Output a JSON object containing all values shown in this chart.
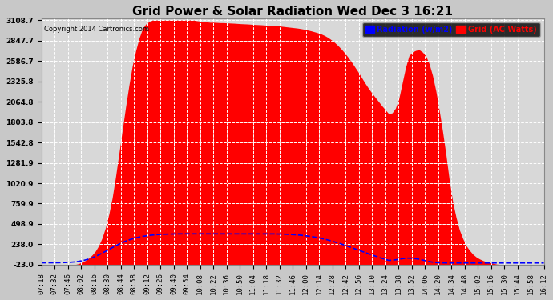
{
  "title": "Grid Power & Solar Radiation Wed Dec 3 16:21",
  "copyright": "Copyright 2014 Cartronics.com",
  "legend_labels": [
    "Radiation (w/m2)",
    "Grid (AC Watts)"
  ],
  "yticks": [
    3108.7,
    2847.7,
    2586.7,
    2325.8,
    2064.8,
    1803.8,
    1542.8,
    1281.9,
    1020.9,
    759.9,
    498.9,
    238.0,
    -23.0
  ],
  "ymin": -23.0,
  "ymax": 3108.7,
  "fig_bg": "#c8c8c8",
  "plot_bg": "#d8d8d8",
  "title_fontsize": 11,
  "tick_fontsize": 6.5,
  "x_display_times": [
    "07:18",
    "07:32",
    "07:46",
    "08:02",
    "08:16",
    "08:30",
    "08:44",
    "08:58",
    "09:12",
    "09:26",
    "09:40",
    "09:54",
    "10:08",
    "10:22",
    "10:36",
    "10:50",
    "11:04",
    "11:18",
    "11:32",
    "11:46",
    "12:00",
    "12:14",
    "12:28",
    "12:42",
    "12:56",
    "13:10",
    "13:24",
    "13:38",
    "13:52",
    "14:06",
    "14:20",
    "14:34",
    "14:48",
    "15:02",
    "15:16",
    "15:30",
    "15:44",
    "15:58",
    "16:12"
  ],
  "grid_ac_data": [
    -23,
    -23,
    -23,
    -23,
    -23,
    -23,
    -23,
    -23,
    -23,
    -23,
    -20,
    -10,
    10,
    30,
    60,
    100,
    150,
    220,
    320,
    450,
    620,
    830,
    1100,
    1400,
    1700,
    2000,
    2280,
    2530,
    2720,
    2880,
    3000,
    3060,
    3090,
    3108,
    3108,
    3108,
    3108,
    3108,
    3108,
    3108,
    3108,
    3108,
    3108,
    3108,
    3108,
    3108,
    3100,
    3095,
    3090,
    3085,
    3080,
    3080,
    3078,
    3075,
    3075,
    3072,
    3070,
    3068,
    3065,
    3062,
    3060,
    3058,
    3055,
    3052,
    3050,
    3048,
    3045,
    3042,
    3040,
    3038,
    3035,
    3030,
    3025,
    3020,
    3015,
    3010,
    3005,
    2998,
    2990,
    2980,
    2970,
    2958,
    2945,
    2930,
    2910,
    2885,
    2855,
    2820,
    2780,
    2735,
    2685,
    2630,
    2570,
    2505,
    2440,
    2370,
    2300,
    2235,
    2175,
    2120,
    2065,
    2010,
    1960,
    1910,
    1920,
    1980,
    2100,
    2300,
    2500,
    2650,
    2700,
    2720,
    2730,
    2700,
    2650,
    2550,
    2400,
    2200,
    1950,
    1680,
    1380,
    1050,
    780,
    580,
    420,
    310,
    220,
    160,
    110,
    75,
    50,
    30,
    15,
    5,
    -5,
    -15,
    -20,
    -23,
    -23,
    -23,
    -23,
    -23,
    -23,
    -23,
    -23,
    -23,
    -23,
    -23,
    -23,
    -23
  ],
  "solar_rad_data": [
    2,
    2,
    2,
    2,
    3,
    3,
    4,
    5,
    7,
    10,
    14,
    20,
    28,
    38,
    50,
    65,
    83,
    103,
    125,
    148,
    172,
    196,
    219,
    241,
    261,
    279,
    295,
    309,
    321,
    331,
    340,
    347,
    353,
    358,
    362,
    365,
    367,
    369,
    370,
    371,
    372,
    372,
    373,
    373,
    373,
    374,
    374,
    374,
    374,
    374,
    374,
    374,
    374,
    374,
    374,
    374,
    374,
    374,
    374,
    374,
    374,
    374,
    374,
    374,
    374,
    373,
    373,
    373,
    372,
    372,
    371,
    370,
    369,
    367,
    365,
    362,
    359,
    355,
    350,
    345,
    339,
    332,
    324,
    315,
    305,
    294,
    282,
    269,
    256,
    242,
    227,
    212,
    197,
    181,
    165,
    150,
    134,
    118,
    103,
    88,
    73,
    59,
    46,
    33,
    35,
    40,
    48,
    55,
    60,
    62,
    60,
    55,
    48,
    38,
    28,
    18,
    10,
    5,
    2,
    1,
    0,
    0,
    0,
    0,
    0,
    0,
    0,
    0,
    0,
    0,
    0,
    0,
    0,
    0,
    0,
    0,
    0,
    0,
    0,
    0,
    0,
    0,
    0,
    0,
    0,
    0,
    0,
    0,
    0,
    0
  ]
}
